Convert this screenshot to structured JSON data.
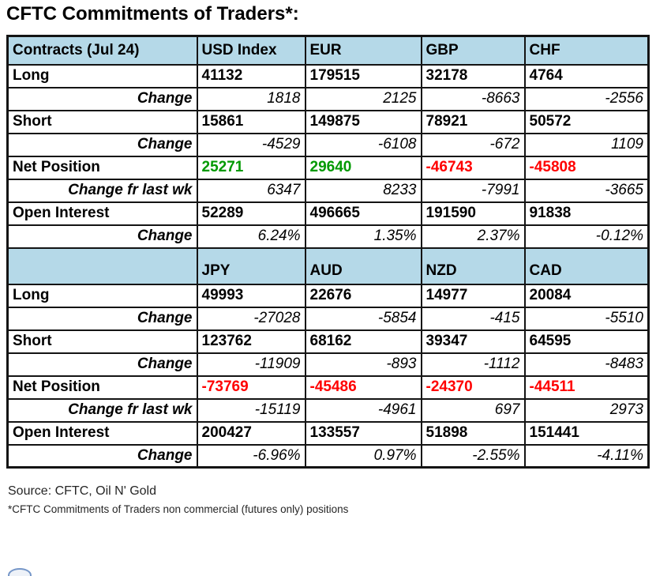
{
  "title": "CFTC Commitments of Traders*:",
  "colors": {
    "header_bg": "#b5d9e8",
    "label_bg": "#d7dcea",
    "positive_green": "#009900",
    "negative_red": "#ff0000",
    "border": "#141414"
  },
  "chart_data": [
    {
      "type": "table",
      "title": "CFTC Commitments of Traders (Jul 24) — USD Index / EUR / GBP / CHF",
      "columns": [
        "Contracts (Jul 24)",
        "USD Index",
        "EUR",
        "GBP",
        "CHF"
      ],
      "rows": [
        {
          "label": "Long",
          "values": [
            "41132",
            "179515",
            "32178",
            "4764"
          ]
        },
        {
          "label": "Change",
          "values": [
            "1818",
            "2125",
            "-8663",
            "-2556"
          ]
        },
        {
          "label": "Short",
          "values": [
            "15861",
            "149875",
            "78921",
            "50572"
          ]
        },
        {
          "label": "Change",
          "values": [
            "-4529",
            "-6108",
            "-672",
            "1109"
          ]
        },
        {
          "label": "Net Position",
          "values": [
            "25271",
            "29640",
            "-46743",
            "-45808"
          ]
        },
        {
          "label": "Change fr last wk",
          "values": [
            "6347",
            "8233",
            "-7991",
            "-3665"
          ]
        },
        {
          "label": "Open Interest",
          "values": [
            "52289",
            "496665",
            "191590",
            "91838"
          ]
        },
        {
          "label": "Change",
          "values": [
            "6.24%",
            "1.35%",
            "2.37%",
            "-0.12%"
          ]
        }
      ]
    },
    {
      "type": "table",
      "title": "CFTC Commitments of Traders (Jul 24) — JPY / AUD / NZD / CAD",
      "columns": [
        "",
        "JPY",
        "AUD",
        "NZD",
        "CAD"
      ],
      "rows": [
        {
          "label": "Long",
          "values": [
            "49993",
            "22676",
            "14977",
            "20084"
          ]
        },
        {
          "label": "Change",
          "values": [
            "-27028",
            "-5854",
            "-415",
            "-5510"
          ]
        },
        {
          "label": "Short",
          "values": [
            "123762",
            "68162",
            "39347",
            "64595"
          ]
        },
        {
          "label": "Change",
          "values": [
            "-11909",
            "-893",
            "-1112",
            "-8483"
          ]
        },
        {
          "label": "Net Position",
          "values": [
            "-73769",
            "-45486",
            "-24370",
            "-44511"
          ]
        },
        {
          "label": "Change fr last wk",
          "values": [
            "-15119",
            "-4961",
            "697",
            "2973"
          ]
        },
        {
          "label": "Open Interest",
          "values": [
            "200427",
            "133557",
            "51898",
            "151441"
          ]
        },
        {
          "label": "Change",
          "values": [
            "-6.96%",
            "0.97%",
            "-2.55%",
            "-4.11%"
          ]
        }
      ]
    }
  ],
  "footer": {
    "source": "Source: CFTC, Oil N' Gold",
    "note": "*CFTC Commitments of Traders non commercial (futures only) positions"
  },
  "icons": {
    "bottom_partial": "globe-icon"
  }
}
